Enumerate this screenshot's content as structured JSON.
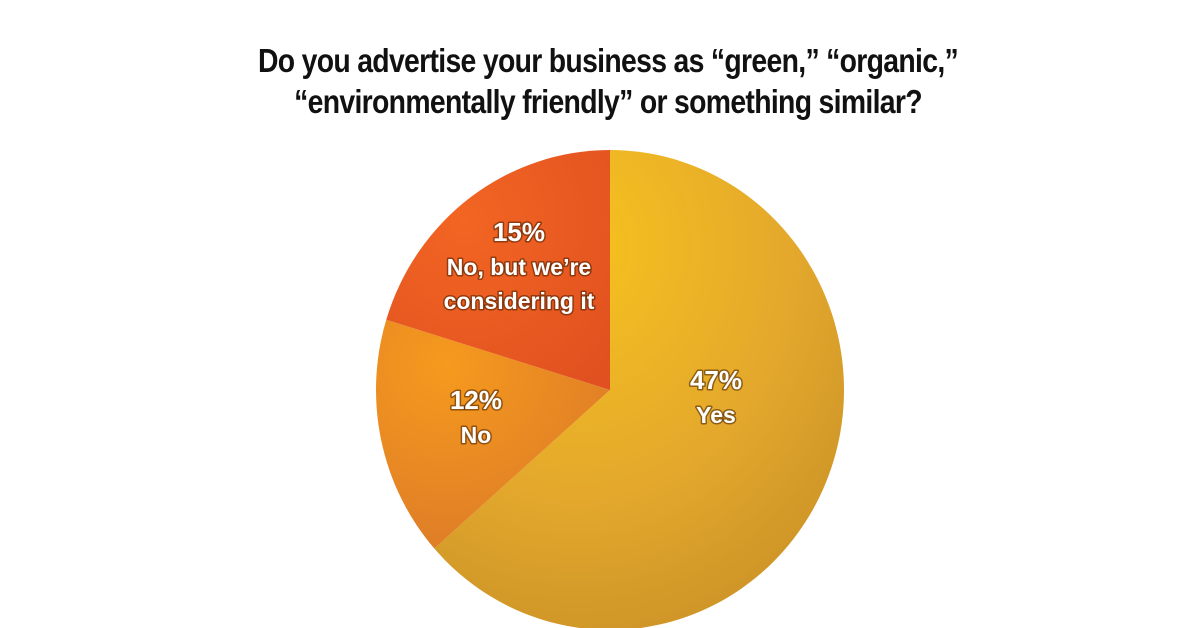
{
  "chart_data": {
    "type": "pie",
    "title_lines": [
      "Do you advertise your business as “green,” “organic,”",
      "“environmentally friendly” or something similar?"
    ],
    "slices": [
      {
        "label": "Yes",
        "value_text": "47%",
        "value": 47,
        "color": "#e6a827"
      },
      {
        "label": "No",
        "value_text": "12%",
        "value": 12,
        "color": "#ec8a22"
      },
      {
        "label_lines": [
          "No, but we’re",
          "considering it"
        ],
        "value_text": "15%",
        "value": 15,
        "color": "#e95a22"
      }
    ],
    "legend": "none",
    "value_unit": "%"
  }
}
